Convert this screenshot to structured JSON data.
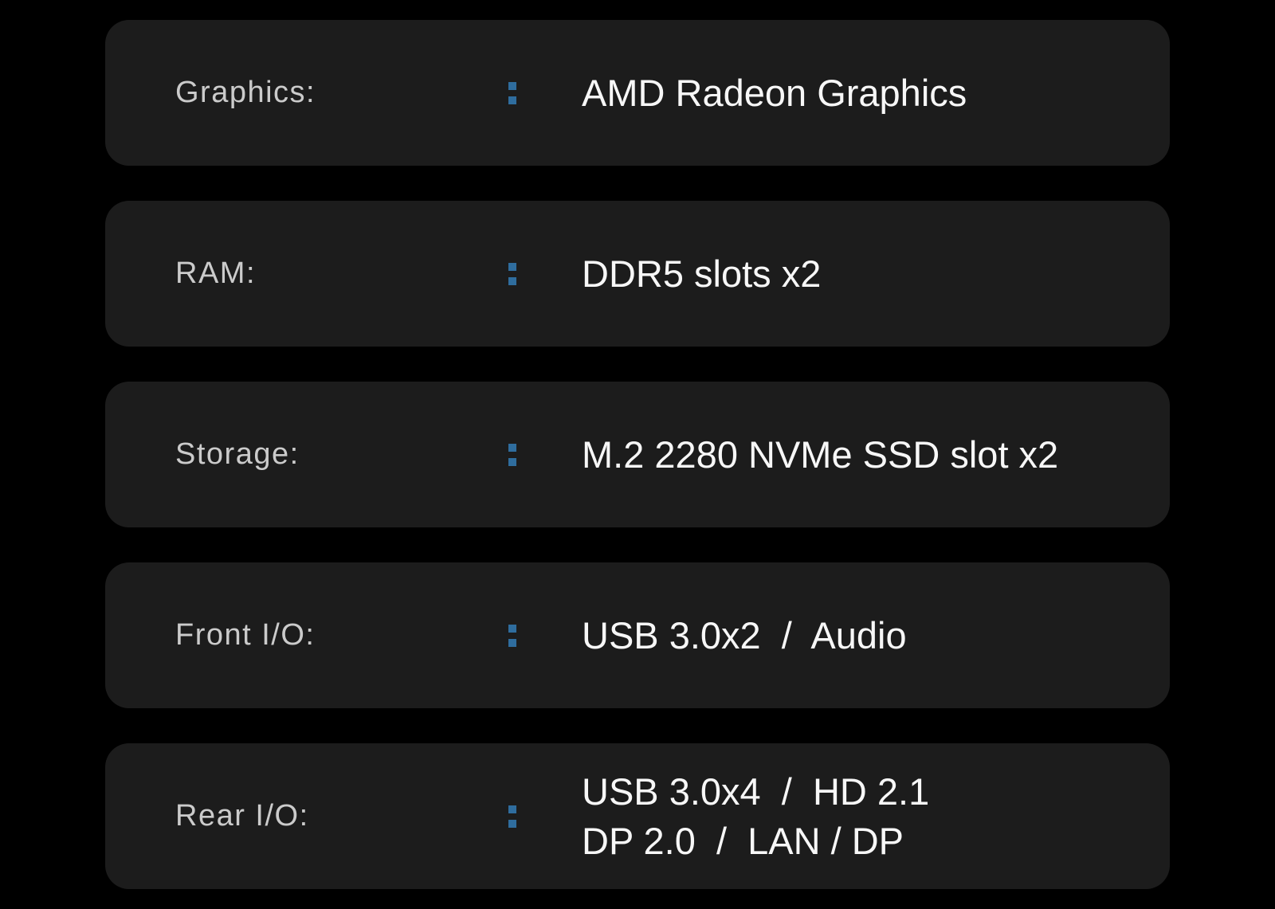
{
  "colors": {
    "background": "#000000",
    "card_background": "#1c1c1c",
    "label_text": "#cbcbcb",
    "value_text": "#f7f7f7",
    "colon_accent": "#2f6d9e"
  },
  "spec_rows": [
    {
      "id": "graphics",
      "label": "Graphics:",
      "value_lines": [
        "AMD Radeon Graphics"
      ]
    },
    {
      "id": "ram",
      "label": "RAM:",
      "value_lines": [
        "DDR5 slots x2"
      ]
    },
    {
      "id": "storage",
      "label": "Storage:",
      "value_lines": [
        "M.2 2280 NVMe SSD slot x2"
      ]
    },
    {
      "id": "front-io",
      "label": "Front I/O:",
      "value_lines": [
        "USB 3.0x2  /  Audio"
      ]
    },
    {
      "id": "rear-io",
      "label": "Rear I/O:",
      "value_lines": [
        "USB 3.0x4  /  HD 2.1",
        "DP 2.0  /  LAN / DP"
      ]
    }
  ]
}
